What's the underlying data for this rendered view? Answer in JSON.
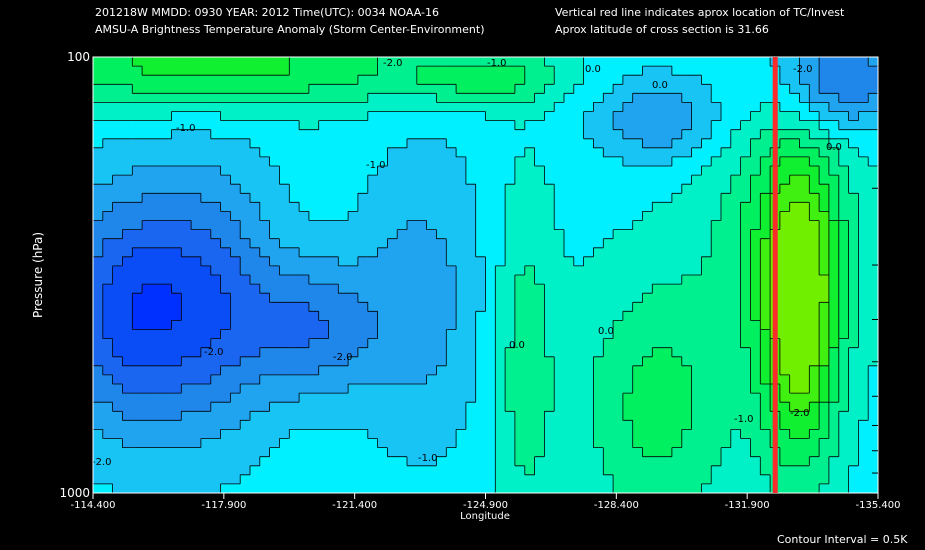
{
  "header": {
    "line1": "201218W  MMDD: 0930 YEAR: 2012 Time(UTC): 0034 NOAA-16",
    "line2": "AMSU-A Brightness Temperature Anomaly (Storm Center-Environment)",
    "right1": "Vertical red line indicates aprox location of TC/Invest",
    "right2": "Aprox latitude of cross section is 31.66"
  },
  "footer": {
    "contour_interval": "Contour Interval = 0.5K"
  },
  "colors": {
    "accent_red": "#ff2a2a"
  },
  "chart_data": {
    "type": "heatmap",
    "title": "AMSU-A Brightness Temperature Anomaly (Storm Center-Environment)",
    "xlabel": "Longitude",
    "ylabel": "Pressure (hPa)",
    "xlim": [
      -114.4,
      -135.4
    ],
    "ylim": [
      1000,
      100
    ],
    "y_scale": "log",
    "x_ticks": [
      "-114.400",
      "-117.900",
      "-121.400",
      "-124.900",
      "-128.400",
      "-131.900",
      "-135.400"
    ],
    "x_tick_values": [
      -114.4,
      -117.9,
      -121.4,
      -124.9,
      -128.4,
      -131.9,
      -135.4
    ],
    "y_ticks": [
      "100",
      "1000"
    ],
    "y_tick_values": [
      100,
      1000
    ],
    "storm_longitude": -132.65,
    "contour_interval": 0.5,
    "contour_labels": [
      "-2.0",
      "-1.0",
      "0.0",
      "-1.0",
      "0.0",
      "-2.0",
      "0.0",
      "-1.0",
      "-2.0",
      "-2.0",
      "-1.0",
      "0.0",
      "0.0",
      "-1.0",
      "-2.0",
      "-2.0"
    ],
    "levels": [
      {
        "value": -3.0,
        "color": "#0030ff"
      },
      {
        "value": -2.5,
        "color": "#0a4cf6"
      },
      {
        "value": -2.0,
        "color": "#1a66f0"
      },
      {
        "value": -1.5,
        "color": "#1f86ea"
      },
      {
        "value": -1.0,
        "color": "#20a4f0"
      },
      {
        "value": -0.5,
        "color": "#18c4f4"
      },
      {
        "value": 0.0,
        "color": "#00f0ff"
      },
      {
        "value": 0.5,
        "color": "#00f0c8"
      },
      {
        "value": 1.0,
        "color": "#00f090"
      },
      {
        "value": 1.5,
        "color": "#00f060"
      },
      {
        "value": 2.0,
        "color": "#10f030"
      },
      {
        "value": 2.5,
        "color": "#40f010"
      },
      {
        "value": 3.0,
        "color": "#70f000"
      }
    ]
  }
}
